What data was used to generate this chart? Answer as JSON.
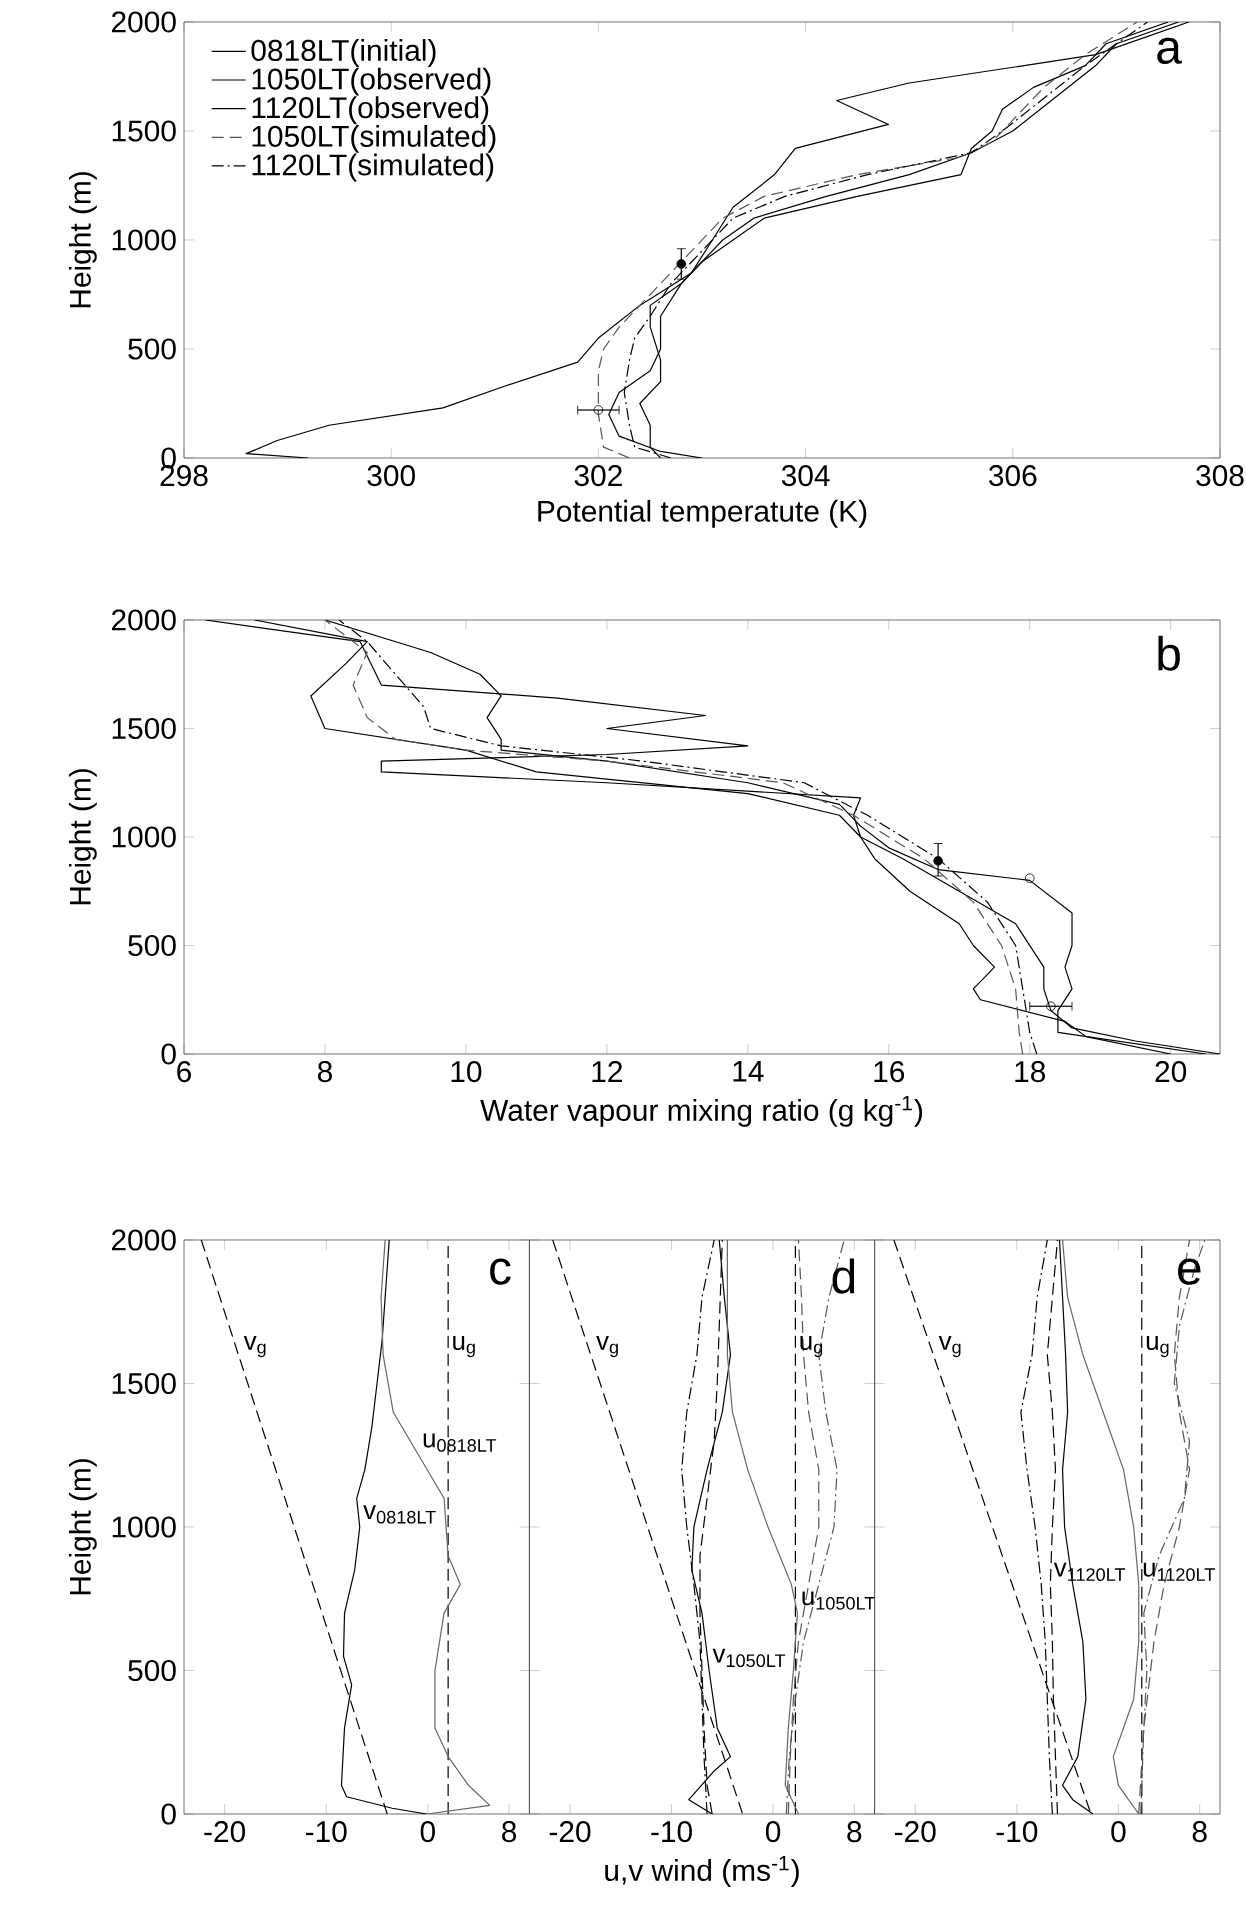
{
  "chart_data": [
    {
      "type": "line",
      "title": "a",
      "xlabel": "Potential temperatute (K)",
      "ylabel": "Height (m)",
      "xlim": [
        298,
        308
      ],
      "ylim": [
        0,
        2000
      ],
      "xticks": [
        298,
        300,
        302,
        304,
        306,
        308
      ],
      "yticks": [
        0,
        500,
        1000,
        1500,
        2000
      ],
      "legend": "top left",
      "series": [
        {
          "name": "0818LT(initial)",
          "color": "#000000",
          "line_style": "solid",
          "x": [
            299.2,
            298.6,
            298.9,
            299.4,
            300.5,
            301.1,
            301.8,
            302.0,
            302.4,
            302.9,
            303.1,
            303.3,
            303.7,
            303.9,
            304.8,
            304.3,
            305.0,
            306.8,
            307.7
          ],
          "values": [
            0,
            20,
            80,
            150,
            230,
            330,
            440,
            550,
            700,
            850,
            1000,
            1150,
            1300,
            1420,
            1530,
            1640,
            1720,
            1850,
            2000
          ]
        },
        {
          "name": "1050LT(observed)",
          "color": "#000000",
          "line_style": "solid",
          "x": [
            303.0,
            302.6,
            302.2,
            302.1,
            302.2,
            302.5,
            302.6,
            302.6,
            302.8,
            303.0,
            303.3,
            303.6,
            304.5,
            305.5,
            305.6,
            305.8,
            305.9,
            306.2,
            306.7,
            306.9,
            307.5
          ],
          "values": [
            0,
            30,
            100,
            200,
            300,
            400,
            500,
            650,
            800,
            900,
            1000,
            1100,
            1200,
            1300,
            1420,
            1500,
            1600,
            1700,
            1800,
            1900,
            2000
          ]
        },
        {
          "name": "1120LT(observed)",
          "color": "#000000",
          "line_style": "solid",
          "x": [
            302.6,
            302.5,
            302.5,
            302.4,
            302.6,
            302.6,
            302.5,
            302.5,
            302.8,
            303.0,
            303.2,
            303.5,
            304.2,
            305.0,
            305.6,
            306.0,
            306.4,
            306.8,
            307.0,
            307.6
          ],
          "values": [
            0,
            50,
            150,
            250,
            350,
            450,
            600,
            700,
            800,
            900,
            1000,
            1100,
            1200,
            1300,
            1400,
            1500,
            1650,
            1800,
            1900,
            2000
          ]
        },
        {
          "name": "1050LT(simulated)",
          "color": "#555555",
          "line_style": "dashed",
          "x": [
            302.3,
            302.05,
            302.0,
            302.0,
            302.05,
            302.2,
            302.4,
            302.6,
            302.9,
            303.2,
            303.6,
            304.5,
            305.5,
            305.8,
            306.0,
            306.3,
            306.7,
            307.2
          ],
          "values": [
            0,
            50,
            200,
            400,
            500,
            600,
            700,
            800,
            950,
            1100,
            1200,
            1300,
            1380,
            1450,
            1550,
            1700,
            1850,
            2000
          ]
        },
        {
          "name": "1120LT(simulated)",
          "color": "#000000",
          "line_style": "dashdot",
          "x": [
            302.7,
            302.35,
            302.3,
            302.25,
            302.3,
            302.35,
            302.5,
            302.7,
            303.0,
            303.3,
            303.8,
            304.6,
            305.6,
            305.9,
            306.3,
            306.7,
            307.3
          ],
          "values": [
            0,
            50,
            150,
            300,
            450,
            550,
            650,
            800,
            950,
            1100,
            1200,
            1300,
            1400,
            1500,
            1650,
            1800,
            2000
          ]
        },
        {
          "type": "scatter",
          "color": "#000000",
          "marker": "circle",
          "x": [
            302.0
          ],
          "values": [
            220
          ],
          "xerrors": [
            [
              301.8,
              302.2
            ]
          ]
        },
        {
          "type": "scatter",
          "color": "#000000",
          "x": [
            302.8
          ],
          "values": [
            890
          ],
          "errors": [
            [
              820,
              960
            ]
          ]
        }
      ]
    },
    {
      "type": "line",
      "title": "b",
      "xlabel": "Water vapour mixing ratio (g kg$^{-1}$)",
      "ylabel": "Height (m)",
      "xlim": [
        6,
        20.7
      ],
      "ylim": [
        0,
        2000
      ],
      "xticks": [
        6,
        8,
        10,
        12,
        14,
        16,
        18,
        20
      ],
      "yticks": [
        0,
        500,
        1000,
        1500,
        2000
      ],
      "series": [
        {
          "color": "#000000",
          "line_style": "solid",
          "x": [
            20.7,
            19.5,
            18.6,
            18.3,
            18.2,
            18.2,
            17.8,
            17.0,
            16.2,
            15.6,
            15.5,
            15.6,
            12.0,
            8.8,
            8.8,
            12.0,
            14.0,
            12.0,
            13.4,
            11.3,
            8.8,
            8.5,
            6.3
          ],
          "values": [
            0,
            60,
            120,
            200,
            300,
            400,
            600,
            750,
            900,
            1000,
            1100,
            1180,
            1250,
            1300,
            1350,
            1380,
            1420,
            1500,
            1560,
            1640,
            1700,
            1900,
            2000
          ]
        },
        {
          "color": "#000000",
          "line_style": "solid",
          "x": [
            20.0,
            18.8,
            18.5,
            17.3,
            17.2,
            17.5,
            17.2,
            17.0,
            16.3,
            15.8,
            15.6,
            15.3,
            14.0,
            11.0,
            10.0,
            8.0,
            7.8,
            8.3,
            8.6,
            7.0
          ],
          "values": [
            0,
            80,
            150,
            250,
            300,
            400,
            500,
            600,
            750,
            900,
            1000,
            1100,
            1200,
            1300,
            1400,
            1500,
            1650,
            1800,
            1900,
            2000
          ]
        },
        {
          "color": "#000000",
          "line_style": "solid",
          "x": [
            20.5,
            18.4,
            18.4,
            18.6,
            18.5,
            18.6,
            18.6,
            18.0,
            16.7,
            16.0,
            15.6,
            15.3,
            14.0,
            12.0,
            10.5,
            10.5,
            10.3,
            10.5,
            10.2,
            9.5,
            8.0
          ],
          "values": [
            0,
            100,
            200,
            300,
            400,
            500,
            650,
            800,
            850,
            950,
            1050,
            1150,
            1250,
            1350,
            1400,
            1450,
            1550,
            1650,
            1750,
            1850,
            2000
          ]
        },
        {
          "color": "#555555",
          "line_style": "dashed",
          "x": [
            17.9,
            17.85,
            17.8,
            17.6,
            17.2,
            16.5,
            16.0,
            15.5,
            14.5,
            12.0,
            10.0,
            9.0,
            8.6,
            8.4,
            8.6,
            8.0
          ],
          "values": [
            0,
            100,
            300,
            500,
            700,
            900,
            1000,
            1100,
            1250,
            1350,
            1400,
            1450,
            1550,
            1700,
            1850,
            2000
          ]
        },
        {
          "color": "#000000",
          "line_style": "dashdot",
          "x": [
            18.1,
            18.0,
            17.9,
            17.8,
            17.4,
            16.7,
            16.2,
            15.7,
            14.8,
            12.5,
            10.5,
            9.5,
            9.4,
            9.0,
            8.6,
            8.2
          ],
          "values": [
            0,
            100,
            300,
            500,
            700,
            900,
            1000,
            1100,
            1250,
            1350,
            1420,
            1500,
            1600,
            1750,
            1900,
            2000
          ]
        },
        {
          "type": "scatter",
          "color": "#000000",
          "marker": "circle",
          "x": [
            18.3
          ],
          "values": [
            220
          ],
          "xerrors": [
            [
              18.0,
              18.6
            ]
          ]
        },
        {
          "type": "scatter",
          "color": "#000000",
          "x": [
            16.7
          ],
          "values": [
            890
          ],
          "errors": [
            [
              820,
              970
            ]
          ]
        },
        {
          "type": "scatter",
          "color": "#000000",
          "marker": "circle",
          "x": [
            18.0
          ],
          "values": [
            810
          ]
        }
      ]
    },
    {
      "type": "line",
      "title": "c",
      "ylabel": "Height (m)",
      "xlim": [
        -24,
        10
      ],
      "ylim": [
        0,
        2000
      ],
      "xticks": [
        -20,
        -10,
        0,
        8
      ],
      "yticks": [
        0,
        500,
        1000,
        1500,
        2000
      ],
      "annotations": [
        {
          "text": "v$_{g}$",
          "x": -18.46,
          "y": 1580
        },
        {
          "text": "u$_{g}$",
          "x": 2.0,
          "y": 1580
        },
        {
          "text": "u$_{0818LT}$",
          "x": -0.9,
          "y": 1250
        },
        {
          "text": "v$_{0818LT}$",
          "x": -6.7,
          "y": 1000
        }
      ],
      "series": [
        {
          "color": "#000000",
          "line_style": "dashed",
          "x": [
            -22.3,
            -4.0
          ],
          "values": [
            2000,
            0
          ]
        },
        {
          "color": "#000000",
          "line_style": "dashed",
          "x": [
            2.0,
            2.0
          ],
          "values": [
            0,
            2000
          ]
        },
        {
          "color": "#000000",
          "line_style": "solid",
          "x": [
            -0.1,
            -3.5,
            -8.0,
            -8.5,
            -8.2,
            -7.5,
            -8.3,
            -8.2,
            -7.2,
            -6.7,
            -7.0,
            -6.2,
            -5.5,
            -5.0,
            -4.5,
            -4.2,
            -3.8
          ],
          "values": [
            0,
            20,
            60,
            100,
            300,
            450,
            550,
            700,
            850,
            1000,
            1100,
            1200,
            1350,
            1500,
            1650,
            1800,
            2000
          ]
        },
        {
          "color": "#666666",
          "line_style": "solid",
          "x": [
            -0.1,
            6.1,
            4.0,
            2.0,
            0.7,
            0.7,
            1.6,
            3.2,
            2.0,
            1.6,
            -0.9,
            -3.4,
            -4.4,
            -4.6,
            -4.2
          ],
          "values": [
            0,
            30,
            100,
            200,
            300,
            500,
            700,
            800,
            900,
            1100,
            1250,
            1400,
            1600,
            1800,
            2000
          ]
        }
      ]
    },
    {
      "type": "line",
      "title": "d",
      "xlabel": "u,v wind (ms$^{-1}$)",
      "xlim": [
        -24,
        10
      ],
      "ylim": [
        0,
        2000
      ],
      "xticks": [
        -20,
        -10,
        0,
        8
      ],
      "yticks": [
        0,
        500,
        1000,
        1500,
        2000
      ],
      "tick_labels": "x",
      "annotations": [
        {
          "text": "v$_{g}$",
          "x": -17.77,
          "y": 1580
        },
        {
          "text": "u$_{g}$",
          "x": 2.2,
          "y": 1580
        },
        {
          "text": "u$_{1050LT}$",
          "x": 2.4,
          "y": 700
        },
        {
          "text": "v$_{1050LT}$",
          "x": -6.3,
          "y": 500
        }
      ],
      "series": [
        {
          "color": "#000000",
          "line_style": "dashed",
          "x": [
            -21.7,
            -3.0
          ],
          "values": [
            2000,
            0
          ]
        },
        {
          "color": "#000000",
          "line_style": "dashed",
          "x": [
            2.2,
            2.2
          ],
          "values": [
            0,
            2000
          ]
        },
        {
          "color": "#000000",
          "line_style": "solid",
          "x": [
            -6.0,
            -8.3,
            -5.8,
            -4.2,
            -5.5,
            -6.3,
            -7.0,
            -8.0,
            -7.8,
            -6.5,
            -5.0,
            -4.2,
            -4.8,
            -5.3
          ],
          "values": [
            0,
            50,
            150,
            200,
            300,
            500,
            700,
            850,
            1000,
            1200,
            1400,
            1600,
            1800,
            2000
          ]
        },
        {
          "color": "#000000",
          "line_style": "dashed",
          "x": [
            -6.0,
            -6.5,
            -6.8,
            -7.0,
            -7.2,
            -7.2,
            -6.5,
            -5.8,
            -5.5,
            -5.3,
            -5.0
          ],
          "values": [
            0,
            100,
            300,
            500,
            700,
            900,
            1100,
            1300,
            1500,
            1700,
            2000
          ]
        },
        {
          "color": "#000000",
          "line_style": "dashdot",
          "x": [
            -6.5,
            -6.8,
            -7.0,
            -7.2,
            -7.8,
            -8.5,
            -9.0,
            -8.5,
            -7.5,
            -7.0,
            -5.8
          ],
          "values": [
            0,
            200,
            400,
            600,
            800,
            1000,
            1200,
            1400,
            1600,
            1800,
            2000
          ]
        },
        {
          "color": "#666666",
          "line_style": "solid",
          "x": [
            2.5,
            1.2,
            1.5,
            2.0,
            2.4,
            1.8,
            -0.5,
            -2.5,
            -4.0,
            -4.5,
            -4.5
          ],
          "values": [
            0,
            100,
            300,
            500,
            700,
            800,
            1000,
            1200,
            1400,
            1600,
            2000
          ]
        },
        {
          "color": "#555555",
          "line_style": "dashed",
          "x": [
            1.5,
            1.7,
            2.0,
            2.5,
            3.5,
            4.5,
            4.5,
            3.5,
            3.0,
            2.8,
            2.5
          ],
          "values": [
            0,
            200,
            400,
            600,
            800,
            1000,
            1200,
            1400,
            1600,
            1800,
            2000
          ]
        },
        {
          "color": "#555555",
          "line_style": "dashdot",
          "x": [
            1.3,
            1.6,
            2.2,
            3.0,
            4.5,
            6.0,
            6.3,
            5.2,
            4.5,
            5.5,
            7.0
          ],
          "values": [
            0,
            200,
            400,
            600,
            800,
            1000,
            1200,
            1400,
            1600,
            1800,
            2000
          ]
        }
      ]
    },
    {
      "type": "line",
      "title": "e",
      "xlim": [
        -24,
        10
      ],
      "ylim": [
        0,
        2000
      ],
      "xticks": [
        -20,
        -10,
        0,
        8
      ],
      "yticks": [
        0,
        500,
        1000,
        1500,
        2000
      ],
      "tick_labels": "x",
      "annotations": [
        {
          "text": "v$_{g}$",
          "x": -18.03,
          "y": 1580
        },
        {
          "text": "u$_{g}$",
          "x": 2.3,
          "y": 1580
        },
        {
          "text": "v$_{1120LT}$",
          "x": -6.7,
          "y": 800
        },
        {
          "text": "u$_{1120LT}$",
          "x": 2.0,
          "y": 800
        }
      ],
      "series": [
        {
          "color": "#000000",
          "line_style": "dashed",
          "x": [
            -22.1,
            -2.7
          ],
          "values": [
            2000,
            0
          ]
        },
        {
          "color": "#000000",
          "line_style": "dashed",
          "x": [
            2.3,
            2.3
          ],
          "values": [
            0,
            2000
          ]
        },
        {
          "color": "#000000",
          "line_style": "solid",
          "x": [
            -2.5,
            -4.5,
            -5.5,
            -4.0,
            -3.2,
            -3.5,
            -4.5,
            -5.3,
            -5.5,
            -5.0,
            -5.2,
            -5.5,
            -5.8
          ],
          "values": [
            0,
            50,
            100,
            200,
            400,
            600,
            800,
            1000,
            1200,
            1400,
            1600,
            1800,
            2000
          ]
        },
        {
          "color": "#000000",
          "line_style": "dashed",
          "x": [
            -6.0,
            -6.2,
            -6.4,
            -6.5,
            -6.7,
            -6.5,
            -6.2,
            -6.5,
            -7.0,
            -6.5,
            -6.0
          ],
          "values": [
            0,
            200,
            400,
            600,
            800,
            1000,
            1200,
            1400,
            1600,
            1800,
            2000
          ]
        },
        {
          "color": "#000000",
          "line_style": "dashdot",
          "x": [
            -6.5,
            -6.8,
            -7.0,
            -7.2,
            -7.6,
            -8.2,
            -9.0,
            -9.6,
            -8.5,
            -8.0,
            -7.0
          ],
          "values": [
            0,
            200,
            400,
            600,
            800,
            1000,
            1200,
            1400,
            1600,
            1800,
            2000
          ]
        },
        {
          "color": "#666666",
          "line_style": "solid",
          "x": [
            2.0,
            0.0,
            -0.5,
            1.5,
            2.0,
            2.0,
            1.5,
            0.5,
            -1.5,
            -3.5,
            -5.0,
            -5.5
          ],
          "values": [
            0,
            100,
            200,
            400,
            600,
            800,
            1000,
            1200,
            1400,
            1600,
            1800,
            2000
          ]
        },
        {
          "color": "#555555",
          "line_style": "dashed",
          "x": [
            2.0,
            2.5,
            3.5,
            4.5,
            6.0,
            7.0,
            6.0,
            5.5,
            6.0,
            7.0
          ],
          "values": [
            0,
            300,
            600,
            800,
            1000,
            1200,
            1400,
            1600,
            1800,
            2000
          ]
        },
        {
          "color": "#555555",
          "line_style": "dashdot",
          "x": [
            2.2,
            2.5,
            2.8,
            2.5,
            4.0,
            6.5,
            7.0,
            5.5,
            6.0,
            7.5,
            8.5
          ],
          "values": [
            0,
            300,
            500,
            700,
            900,
            1100,
            1300,
            1500,
            1700,
            1900,
            2000
          ]
        }
      ]
    }
  ]
}
